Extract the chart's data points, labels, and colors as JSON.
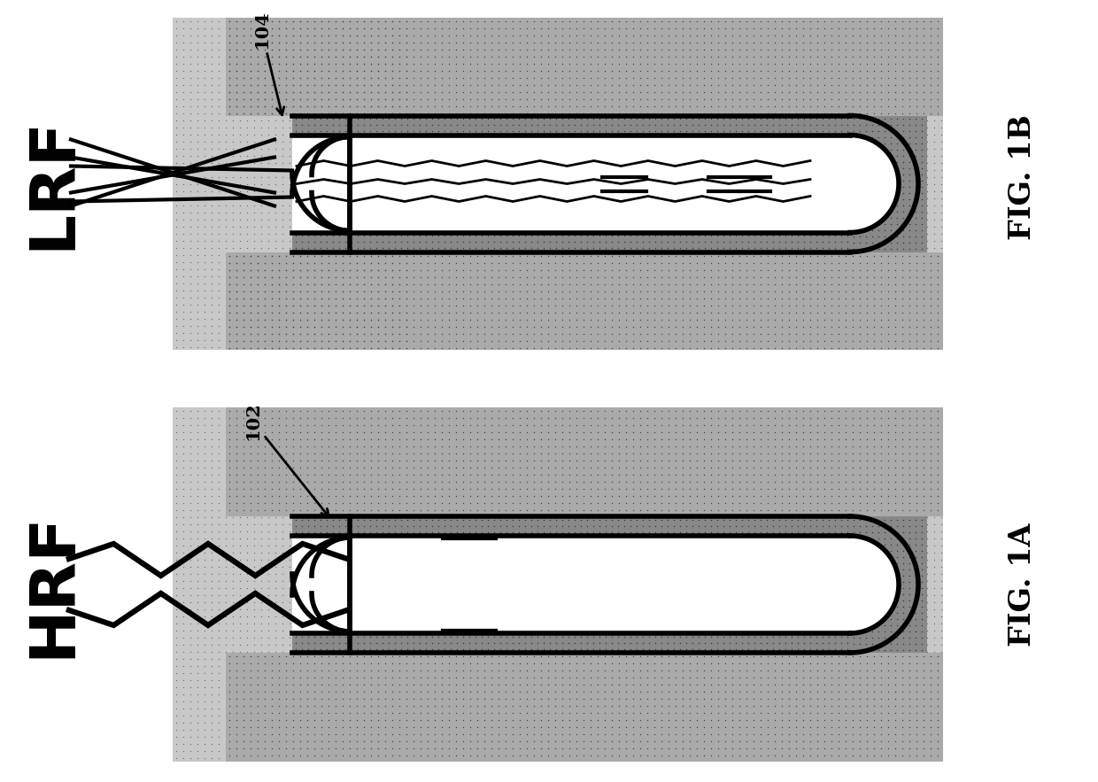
{
  "bg_color": "#ffffff",
  "fig_width": 12.4,
  "fig_height": 8.83,
  "label_LRF": "LRF",
  "label_HRF": "HRF",
  "label_fig1b": "FIG. 1B",
  "label_fig1a": "FIG. 1A",
  "label_104": "104",
  "label_102": "102",
  "outer_bg": "#c8c8c8",
  "outer_dot": "#666666",
  "inner_bg": "#aaaaaa",
  "inner_dot": "#444444",
  "wall_bg": "#888888",
  "wall_dot": "#333333",
  "black": "#000000",
  "white": "#ffffff"
}
